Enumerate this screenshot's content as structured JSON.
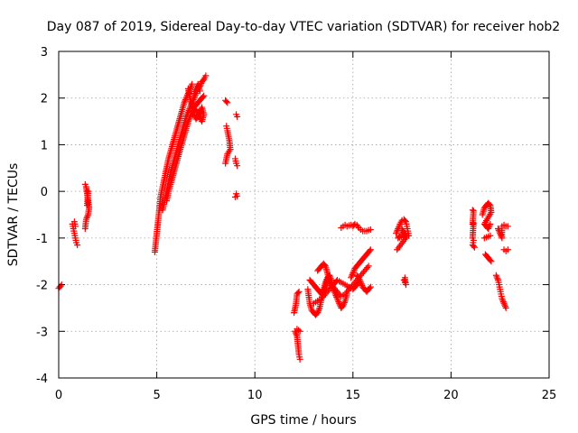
{
  "chart_data": {
    "type": "scatter",
    "title": "Day 087 of 2019, Sidereal Day-to-day VTEC variation (SDTVAR) for receiver hob2",
    "xlabel": "GPS time / hours",
    "ylabel": "SDTVAR / TECUs",
    "xlim": [
      0,
      25
    ],
    "ylim": [
      -4,
      3
    ],
    "xticks": [
      0,
      5,
      10,
      15,
      20,
      25
    ],
    "yticks": [
      -4,
      -3,
      -2,
      -1,
      0,
      1,
      2,
      3
    ],
    "xtick_labels": [
      "0",
      "5",
      "10",
      "15",
      "20",
      "25"
    ],
    "ytick_labels": [
      "-4",
      "-3",
      "-2",
      "-1",
      "0",
      "1",
      "2",
      "3"
    ],
    "grid": true,
    "marker": "+",
    "color": "#ff0000",
    "segments": [
      [
        [
          0.0,
          -2.08
        ],
        [
          0.05,
          -2.05
        ],
        [
          0.1,
          -2.03
        ],
        [
          0.15,
          -2.0
        ]
      ],
      [
        [
          0.7,
          -0.7
        ],
        [
          0.75,
          -0.8
        ],
        [
          0.8,
          -0.9
        ],
        [
          0.85,
          -1.0
        ],
        [
          0.9,
          -1.1
        ],
        [
          0.95,
          -1.15
        ],
        [
          0.8,
          -0.65
        ],
        [
          0.85,
          -0.75
        ]
      ],
      [
        [
          1.35,
          0.15
        ],
        [
          1.4,
          0.1
        ],
        [
          1.45,
          -0.05
        ],
        [
          1.5,
          -0.2
        ],
        [
          1.55,
          -0.35
        ],
        [
          1.5,
          -0.5
        ],
        [
          1.4,
          -0.6
        ],
        [
          1.35,
          -0.8
        ],
        [
          1.45,
          -0.3
        ],
        [
          1.5,
          0.0
        ]
      ],
      [
        [
          4.9,
          -1.3
        ],
        [
          4.95,
          -1.1
        ],
        [
          5.0,
          -0.9
        ],
        [
          5.05,
          -0.7
        ],
        [
          5.1,
          -0.5
        ],
        [
          5.15,
          -0.3
        ],
        [
          5.2,
          -0.1
        ],
        [
          5.3,
          0.1
        ],
        [
          5.4,
          0.3
        ],
        [
          5.5,
          0.5
        ],
        [
          5.6,
          0.7
        ],
        [
          5.7,
          0.85
        ],
        [
          5.8,
          1.0
        ],
        [
          5.9,
          1.15
        ],
        [
          6.0,
          1.3
        ],
        [
          6.1,
          1.45
        ],
        [
          6.2,
          1.6
        ],
        [
          6.3,
          1.75
        ],
        [
          6.4,
          1.9
        ],
        [
          6.5,
          2.0
        ],
        [
          6.6,
          2.1
        ],
        [
          6.7,
          2.2
        ],
        [
          6.8,
          2.3
        ]
      ],
      [
        [
          5.3,
          -0.4
        ],
        [
          5.4,
          -0.2
        ],
        [
          5.5,
          0.0
        ],
        [
          5.6,
          0.2
        ],
        [
          5.7,
          0.4
        ],
        [
          5.8,
          0.55
        ],
        [
          5.9,
          0.7
        ],
        [
          6.0,
          0.85
        ],
        [
          6.1,
          1.0
        ],
        [
          6.2,
          1.15
        ],
        [
          6.3,
          1.3
        ],
        [
          6.4,
          1.45
        ],
        [
          6.5,
          1.6
        ],
        [
          6.6,
          1.7
        ],
        [
          6.7,
          1.8
        ],
        [
          6.8,
          1.9
        ],
        [
          6.9,
          2.0
        ],
        [
          7.0,
          2.1
        ],
        [
          7.1,
          2.2
        ],
        [
          7.2,
          2.25
        ],
        [
          7.3,
          2.35
        ],
        [
          7.4,
          2.4
        ],
        [
          7.5,
          2.48
        ]
      ],
      [
        [
          5.5,
          -0.2
        ],
        [
          5.6,
          0.0
        ],
        [
          5.7,
          0.15
        ],
        [
          5.8,
          0.3
        ],
        [
          5.9,
          0.45
        ],
        [
          6.0,
          0.6
        ],
        [
          6.1,
          0.75
        ],
        [
          6.2,
          0.9
        ],
        [
          6.3,
          1.05
        ],
        [
          6.4,
          1.2
        ],
        [
          6.5,
          1.35
        ],
        [
          6.6,
          1.5
        ],
        [
          6.7,
          1.6
        ],
        [
          6.8,
          1.7
        ],
        [
          6.9,
          1.8
        ],
        [
          7.0,
          1.85
        ],
        [
          7.1,
          1.9
        ],
        [
          7.2,
          1.95
        ],
        [
          7.3,
          2.0
        ],
        [
          7.4,
          2.05
        ]
      ],
      [
        [
          6.6,
          2.2
        ],
        [
          6.7,
          2.0
        ],
        [
          6.8,
          1.8
        ],
        [
          6.9,
          1.65
        ],
        [
          7.0,
          1.55
        ],
        [
          7.1,
          1.6
        ],
        [
          7.2,
          1.7
        ],
        [
          7.3,
          1.8
        ],
        [
          7.4,
          1.65
        ],
        [
          7.3,
          1.5
        ],
        [
          7.0,
          1.75
        ],
        [
          6.9,
          2.1
        ],
        [
          7.1,
          2.3
        ],
        [
          7.2,
          2.15
        ]
      ],
      [
        [
          8.5,
          1.95
        ],
        [
          8.6,
          1.9
        ],
        [
          8.55,
          1.4
        ],
        [
          8.6,
          1.3
        ],
        [
          8.7,
          1.1
        ],
        [
          8.75,
          0.9
        ],
        [
          8.6,
          0.8
        ],
        [
          8.5,
          0.6
        ]
      ],
      [
        [
          9.05,
          1.65
        ],
        [
          9.1,
          1.6
        ],
        [
          9.0,
          0.7
        ],
        [
          9.05,
          0.6
        ],
        [
          9.1,
          0.55
        ],
        [
          9.05,
          -0.05
        ],
        [
          9.1,
          -0.1
        ],
        [
          9.0,
          -0.12
        ]
      ],
      [
        [
          12.0,
          -2.6
        ],
        [
          12.1,
          -2.4
        ],
        [
          12.15,
          -2.2
        ],
        [
          12.25,
          -2.15
        ],
        [
          12.05,
          -3.0
        ],
        [
          12.15,
          -3.1
        ],
        [
          12.2,
          -3.3
        ],
        [
          12.25,
          -3.5
        ],
        [
          12.3,
          -3.6
        ],
        [
          12.15,
          -2.95
        ],
        [
          12.3,
          -3.0
        ]
      ],
      [
        [
          12.7,
          -2.1
        ],
        [
          12.8,
          -2.4
        ],
        [
          12.9,
          -2.55
        ],
        [
          13.0,
          -2.6
        ],
        [
          13.1,
          -2.65
        ],
        [
          13.2,
          -2.6
        ],
        [
          13.3,
          -2.5
        ],
        [
          13.4,
          -2.3
        ],
        [
          13.5,
          -2.1
        ],
        [
          13.6,
          -1.95
        ],
        [
          13.7,
          -1.85
        ],
        [
          13.8,
          -1.8
        ]
      ],
      [
        [
          12.8,
          -1.9
        ],
        [
          12.9,
          -1.95
        ],
        [
          13.0,
          -2.0
        ],
        [
          13.1,
          -2.05
        ],
        [
          13.2,
          -2.1
        ],
        [
          13.3,
          -2.15
        ],
        [
          13.4,
          -2.2
        ],
        [
          13.5,
          -2.15
        ],
        [
          13.6,
          -2.05
        ],
        [
          13.7,
          -1.9
        ],
        [
          13.8,
          -1.8
        ],
        [
          13.9,
          -1.9
        ],
        [
          14.0,
          -2.1
        ],
        [
          14.1,
          -2.2
        ],
        [
          14.2,
          -2.3
        ],
        [
          14.3,
          -2.4
        ],
        [
          14.4,
          -2.5
        ],
        [
          14.5,
          -2.45
        ],
        [
          14.6,
          -2.35
        ],
        [
          14.7,
          -2.2
        ]
      ],
      [
        [
          13.2,
          -1.7
        ],
        [
          13.3,
          -1.65
        ],
        [
          13.4,
          -1.6
        ],
        [
          13.5,
          -1.55
        ],
        [
          13.6,
          -1.6
        ],
        [
          13.7,
          -1.75
        ],
        [
          13.8,
          -1.95
        ],
        [
          13.9,
          -2.05
        ],
        [
          14.0,
          -2.0
        ],
        [
          14.1,
          -1.95
        ],
        [
          14.2,
          -1.9
        ],
        [
          14.4,
          -1.95
        ],
        [
          14.6,
          -2.0
        ],
        [
          14.8,
          -2.05
        ],
        [
          15.0,
          -2.1
        ],
        [
          15.1,
          -2.05
        ],
        [
          15.2,
          -2.0
        ],
        [
          15.3,
          -1.95
        ]
      ],
      [
        [
          13.0,
          -2.4
        ],
        [
          13.2,
          -2.35
        ],
        [
          13.4,
          -2.3
        ],
        [
          13.6,
          -2.2
        ],
        [
          13.8,
          -2.1
        ],
        [
          14.0,
          -2.05
        ],
        [
          14.2,
          -2.15
        ],
        [
          14.4,
          -2.25
        ],
        [
          14.6,
          -2.2
        ],
        [
          14.8,
          -2.1
        ],
        [
          15.0,
          -2.0
        ],
        [
          15.2,
          -1.9
        ],
        [
          15.4,
          -1.8
        ],
        [
          15.6,
          -1.7
        ],
        [
          15.8,
          -1.6
        ]
      ],
      [
        [
          14.9,
          -1.85
        ],
        [
          15.0,
          -1.75
        ],
        [
          15.1,
          -1.65
        ],
        [
          15.2,
          -1.6
        ],
        [
          15.3,
          -1.55
        ],
        [
          15.4,
          -1.5
        ],
        [
          15.5,
          -1.45
        ],
        [
          15.6,
          -1.4
        ],
        [
          15.7,
          -1.35
        ],
        [
          15.8,
          -1.3
        ],
        [
          15.9,
          -1.25
        ]
      ],
      [
        [
          15.2,
          -1.8
        ],
        [
          15.3,
          -1.85
        ],
        [
          15.4,
          -1.95
        ],
        [
          15.5,
          -2.05
        ],
        [
          15.6,
          -2.1
        ],
        [
          15.7,
          -2.15
        ],
        [
          15.8,
          -2.1
        ],
        [
          15.9,
          -2.05
        ]
      ],
      [
        [
          14.4,
          -0.78
        ],
        [
          14.5,
          -0.75
        ],
        [
          14.6,
          -0.72
        ],
        [
          14.7,
          -0.75
        ],
        [
          14.8,
          -0.73
        ],
        [
          14.9,
          -0.72
        ],
        [
          15.0,
          -0.75
        ],
        [
          15.1,
          -0.7
        ],
        [
          15.2,
          -0.72
        ],
        [
          15.3,
          -0.78
        ],
        [
          15.4,
          -0.82
        ],
        [
          15.5,
          -0.85
        ],
        [
          15.6,
          -0.85
        ],
        [
          15.7,
          -0.85
        ],
        [
          15.8,
          -0.83
        ],
        [
          15.9,
          -0.82
        ]
      ],
      [
        [
          17.2,
          -0.9
        ],
        [
          17.3,
          -0.8
        ],
        [
          17.4,
          -0.7
        ],
        [
          17.5,
          -0.62
        ],
        [
          17.6,
          -0.6
        ],
        [
          17.7,
          -0.65
        ],
        [
          17.75,
          -0.75
        ],
        [
          17.8,
          -0.85
        ],
        [
          17.85,
          -0.95
        ],
        [
          17.3,
          -1.0
        ],
        [
          17.4,
          -0.95
        ],
        [
          17.6,
          -0.9
        ],
        [
          17.5,
          -0.8
        ],
        [
          17.7,
          -1.0
        ],
        [
          17.25,
          -1.25
        ]
      ],
      [
        [
          17.6,
          -1.9
        ],
        [
          17.65,
          -1.95
        ],
        [
          17.7,
          -2.0
        ],
        [
          17.65,
          -1.85
        ]
      ],
      [
        [
          21.1,
          -0.4
        ],
        [
          21.15,
          -0.42
        ],
        [
          21.1,
          -0.7
        ],
        [
          21.15,
          -0.68
        ],
        [
          21.1,
          -1.0
        ],
        [
          21.15,
          -1.05
        ],
        [
          21.1,
          -1.15
        ],
        [
          21.2,
          -1.2
        ]
      ],
      [
        [
          21.6,
          -0.5
        ],
        [
          21.7,
          -0.35
        ],
        [
          21.8,
          -0.3
        ],
        [
          21.9,
          -0.25
        ],
        [
          22.0,
          -0.3
        ],
        [
          22.05,
          -0.45
        ],
        [
          21.7,
          -0.7
        ],
        [
          21.8,
          -0.75
        ],
        [
          21.9,
          -0.8
        ],
        [
          22.0,
          -0.7
        ],
        [
          21.75,
          -1.35
        ],
        [
          21.85,
          -1.4
        ],
        [
          21.95,
          -1.45
        ],
        [
          22.05,
          -1.5
        ],
        [
          22.0,
          -0.95
        ],
        [
          21.7,
          -1.0
        ]
      ],
      [
        [
          22.3,
          -1.8
        ],
        [
          22.4,
          -1.9
        ],
        [
          22.45,
          -2.0
        ],
        [
          22.5,
          -2.1
        ],
        [
          22.55,
          -2.2
        ],
        [
          22.6,
          -2.3
        ],
        [
          22.7,
          -2.4
        ],
        [
          22.8,
          -2.5
        ],
        [
          22.4,
          -0.8
        ],
        [
          22.5,
          -0.9
        ],
        [
          22.6,
          -1.0
        ],
        [
          22.6,
          -0.75
        ],
        [
          22.7,
          -0.72
        ],
        [
          22.8,
          -0.75
        ],
        [
          22.9,
          -0.75
        ],
        [
          22.7,
          -1.25
        ],
        [
          22.8,
          -1.28
        ],
        [
          22.9,
          -1.25
        ]
      ]
    ]
  }
}
